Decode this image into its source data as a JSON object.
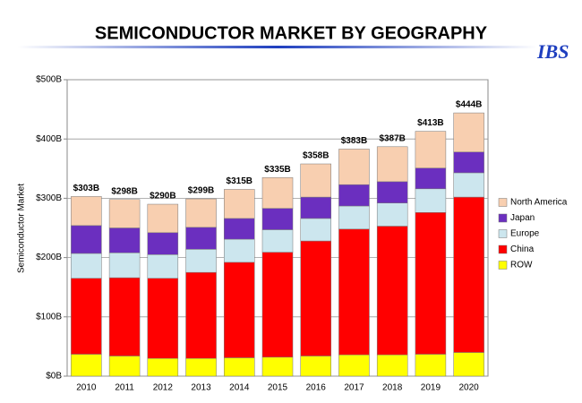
{
  "chart_data": {
    "type": "stacked_bar",
    "title": "SEMICONDUCTOR MARKET BY GEOGRAPHY",
    "logo": "IBS",
    "y_label": "Semiconductor Market",
    "categories": [
      "2010",
      "2011",
      "2012",
      "2013",
      "2014",
      "2015",
      "2016",
      "2017",
      "2018",
      "2019",
      "2020"
    ],
    "series": [
      {
        "name": "ROW",
        "color": "#ffff00",
        "values": [
          37,
          34,
          30,
          30,
          31,
          32,
          34,
          36,
          36,
          37,
          40
        ]
      },
      {
        "name": "China",
        "color": "#ff0000",
        "values": [
          128,
          132,
          135,
          145,
          161,
          177,
          194,
          212,
          217,
          239,
          262
        ]
      },
      {
        "name": "Europe",
        "color": "#cce6ee",
        "values": [
          42,
          42,
          40,
          39,
          39,
          38,
          38,
          39,
          39,
          40,
          41
        ]
      },
      {
        "name": "Japan",
        "color": "#6b2fbf",
        "values": [
          47,
          42,
          37,
          37,
          35,
          36,
          36,
          36,
          36,
          35,
          35
        ]
      },
      {
        "name": "North America",
        "color": "#f8cfb0",
        "values": [
          49,
          48,
          48,
          48,
          49,
          52,
          56,
          60,
          59,
          62,
          66
        ]
      }
    ],
    "totals": {
      "values": [
        303,
        298,
        290,
        299,
        315,
        335,
        358,
        383,
        387,
        413,
        444
      ],
      "value_labels": [
        "$303B",
        "$298B",
        "$290B",
        "$299B",
        "$315B",
        "$335B",
        "$358B",
        "$383B",
        "$387B",
        "$413B",
        "$444B"
      ]
    },
    "ylim": [
      0,
      500
    ],
    "yticks": [
      {
        "value": 0,
        "label": "$0B"
      },
      {
        "value": 100,
        "label": "$100B"
      },
      {
        "value": 200,
        "label": "$200B"
      },
      {
        "value": 300,
        "label": "$300B"
      },
      {
        "value": 400,
        "label": "$400B"
      },
      {
        "value": 500,
        "label": "$500B"
      }
    ],
    "grid": true,
    "legend": "right"
  }
}
